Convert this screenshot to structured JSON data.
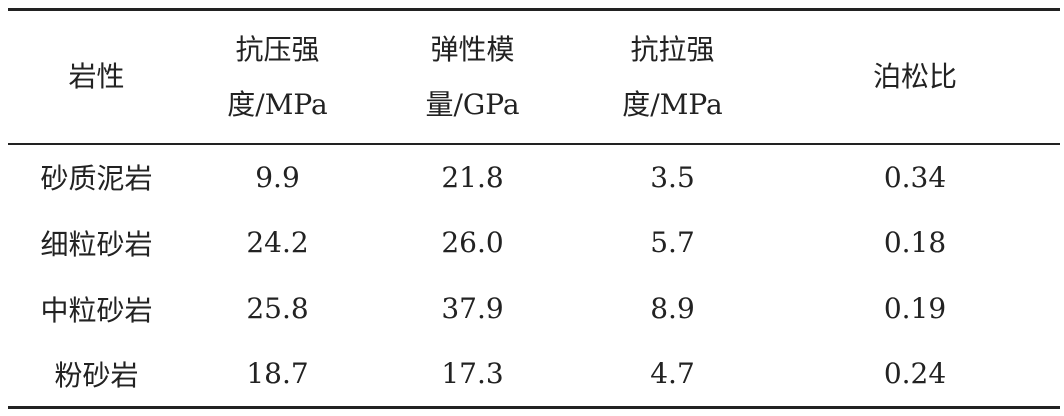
{
  "table": {
    "header": [
      "岩性",
      "抗压强\n度/MPa",
      "弹性模\n量/GPa",
      "抗拉强\n度/MPa",
      "泊松比"
    ],
    "rows": [
      [
        "砂质泥岩",
        "9.9",
        "21.8",
        "3.5",
        "0.34"
      ],
      [
        "细粒砂岩",
        "24.2",
        "26.0",
        "5.7",
        "0.18"
      ],
      [
        "中粒砂岩",
        "25.8",
        "37.9",
        "8.9",
        "0.19"
      ],
      [
        "粉砂岩",
        "18.7",
        "17.3",
        "4.7",
        "0.24"
      ]
    ]
  }
}
